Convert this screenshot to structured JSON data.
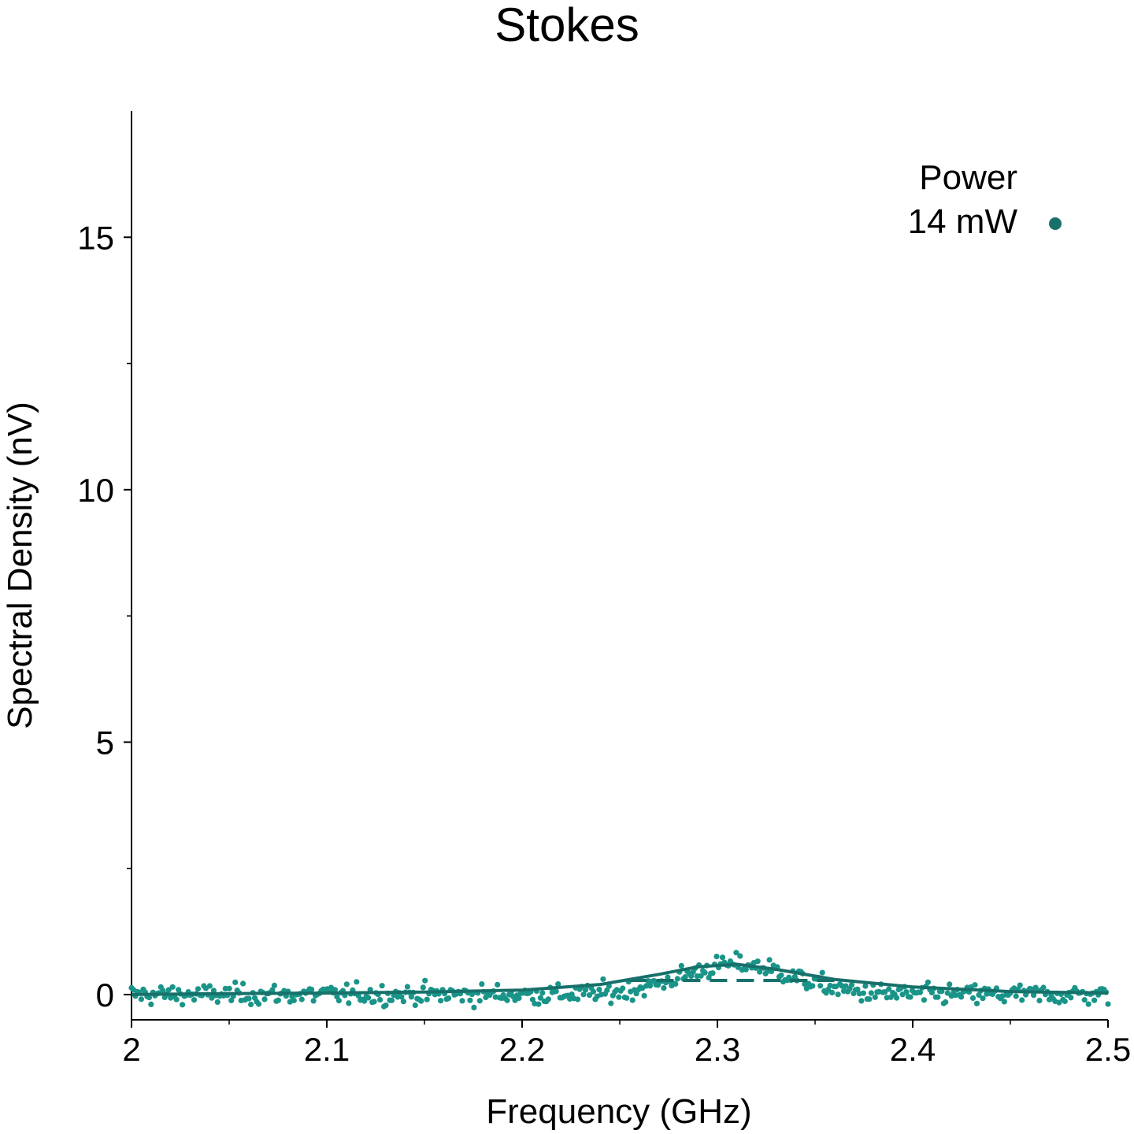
{
  "chart_data": {
    "type": "scatter",
    "title": "Stokes",
    "xlabel": "Frequency (GHz)",
    "ylabel": "Spectral Density (nV)",
    "xlim": [
      2.0,
      2.5
    ],
    "ylim": [
      -0.5,
      17.5
    ],
    "x_ticks": [
      2.0,
      2.1,
      2.2,
      2.3,
      2.4,
      2.5
    ],
    "x_tick_labels": [
      "2",
      "2.1",
      "2.2",
      "2.3",
      "2.4",
      "2.5"
    ],
    "y_ticks": [
      0,
      5,
      10,
      15
    ],
    "y_tick_labels": [
      "0",
      "5",
      "10",
      "15"
    ],
    "grid": false,
    "legend": {
      "title": "Power",
      "position": "top-right",
      "entries": [
        {
          "label": "14 mW",
          "marker": "dot"
        }
      ]
    },
    "series": [
      {
        "name": "14 mW",
        "kind": "points",
        "color": "#1a9488",
        "x_start": 2.0,
        "x_end": 2.5,
        "count": 500,
        "noise_sd": 0.2,
        "baseline": 0.0,
        "peak_center": 2.31,
        "peak_height": 0.6,
        "peak_width": 0.028
      },
      {
        "name": "fit",
        "kind": "line",
        "style": "solid",
        "color": "#17706a",
        "x": [
          2.0,
          2.05,
          2.1,
          2.15,
          2.2,
          2.24,
          2.27,
          2.29,
          2.31,
          2.33,
          2.36,
          2.4,
          2.45,
          2.5
        ],
        "y": [
          0.0,
          0.02,
          0.03,
          0.05,
          0.09,
          0.2,
          0.4,
          0.55,
          0.6,
          0.5,
          0.3,
          0.15,
          0.06,
          0.03
        ]
      },
      {
        "name": "fit-dashed",
        "kind": "line",
        "style": "dashed",
        "color": "#17706a",
        "x": [
          2.255,
          2.36
        ],
        "y": [
          0.28,
          0.28
        ]
      }
    ]
  }
}
